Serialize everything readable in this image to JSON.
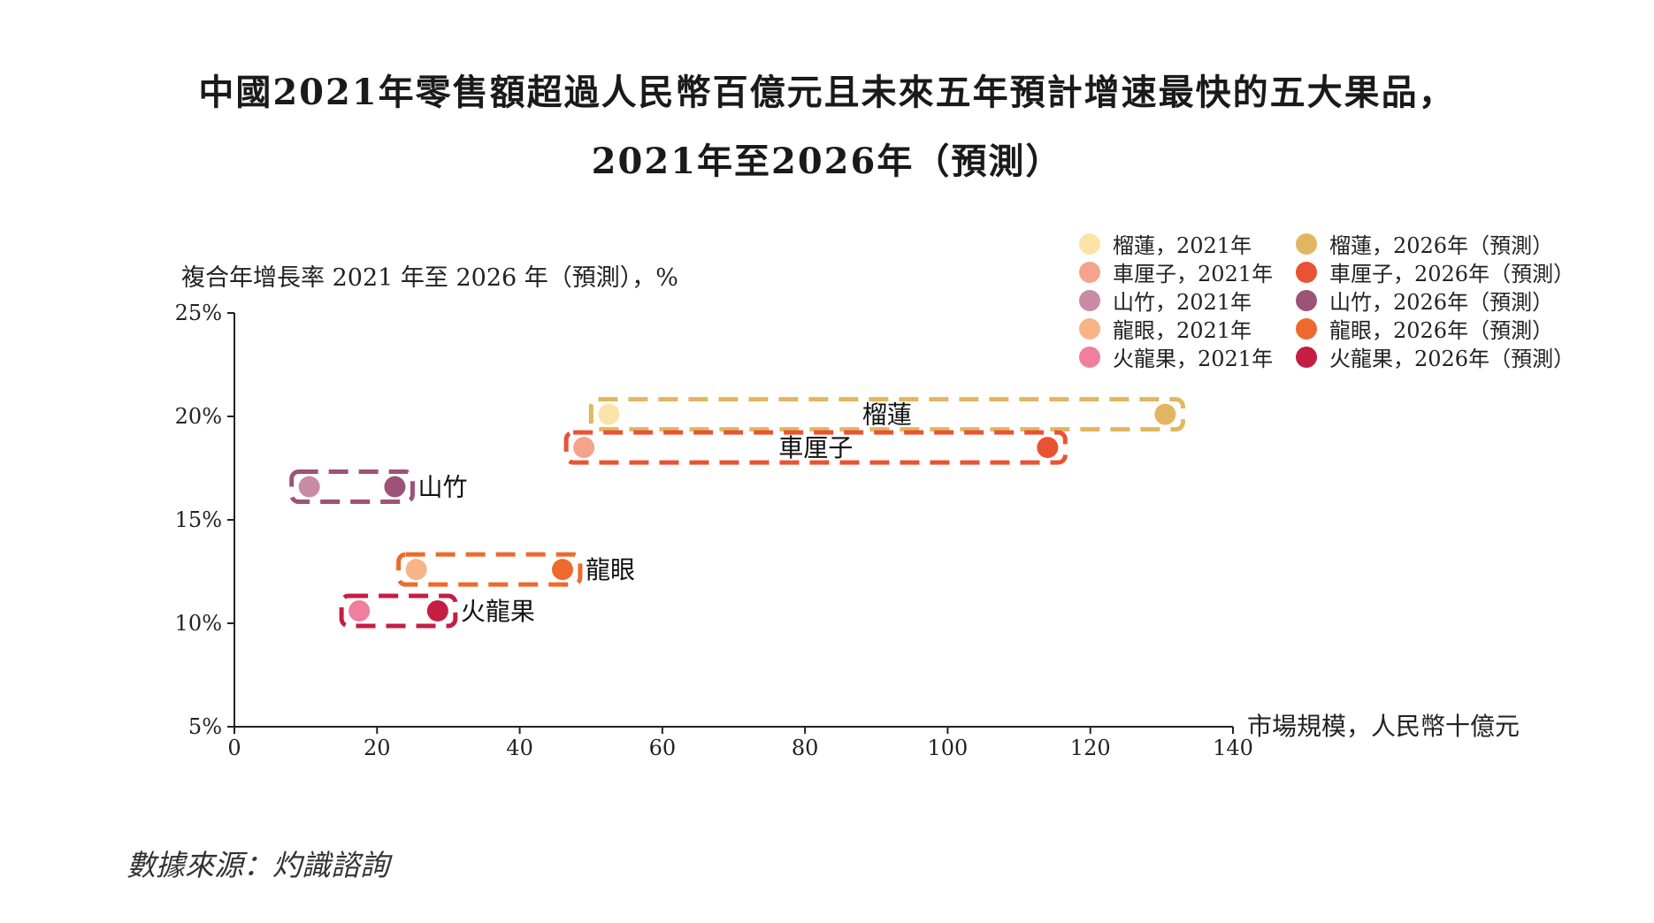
{
  "title_line1": "中國2021年零售額超過人民幣百億元且未來五年預計增速最快的五大果品，",
  "title_line2": "2021年至2026年（預測）",
  "source": "數據來源：灼識諮詢",
  "chart_data": {
    "type": "scatter",
    "ylabel": "複合年增長率 2021 年至 2026 年（預測），%",
    "xlabel": "市場規模，人民幣十億元",
    "xlim": [
      0,
      140
    ],
    "ylim": [
      5,
      25
    ],
    "x_ticks": [
      "0",
      "20",
      "40",
      "60",
      "80",
      "100",
      "120",
      "140"
    ],
    "y_ticks": [
      "5%",
      "10%",
      "15%",
      "20%",
      "25%"
    ],
    "legend_position": "top-right",
    "fruits": [
      {
        "name": "榴蓮",
        "x2021": 52.5,
        "x2026": 130.5,
        "cagr": 20.1,
        "color2021": "#fce4a8",
        "color2026": "#e2b660",
        "box_color": "#e2b660",
        "label_pos": "center"
      },
      {
        "name": "車厘子",
        "x2021": 49,
        "x2026": 114,
        "cagr": 18.5,
        "color2021": "#f4a38d",
        "color2026": "#ea5234",
        "box_color": "#ea5234",
        "label_pos": "center"
      },
      {
        "name": "山竹",
        "x2021": 10.5,
        "x2026": 22.5,
        "cagr": 16.6,
        "color2021": "#c98aa4",
        "color2026": "#9d5278",
        "box_color": "#9d5278",
        "label_pos": "right"
      },
      {
        "name": "龍眼",
        "x2021": 25.5,
        "x2026": 46,
        "cagr": 12.6,
        "color2021": "#f6b487",
        "color2026": "#ee6a2c",
        "box_color": "#ee6a2c",
        "label_pos": "right"
      },
      {
        "name": "火龍果",
        "x2021": 17.5,
        "x2026": 28.5,
        "cagr": 10.6,
        "color2021": "#f07e9c",
        "color2026": "#c51e43",
        "box_color": "#c51e43",
        "label_pos": "right"
      }
    ],
    "legend": [
      {
        "label": "榴蓮，2021年",
        "color": "#fce4a8"
      },
      {
        "label": "車厘子，2021年",
        "color": "#f4a38d"
      },
      {
        "label": "山竹，2021年",
        "color": "#c98aa4"
      },
      {
        "label": "龍眼，2021年",
        "color": "#f6b487"
      },
      {
        "label": "火龍果，2021年",
        "color": "#f07e9c"
      },
      {
        "label": "榴蓮，2026年（預測）",
        "color": "#e2b660"
      },
      {
        "label": "車厘子，2026年（預測）",
        "color": "#ea5234"
      },
      {
        "label": "山竹，2026年（預測）",
        "color": "#9d5278"
      },
      {
        "label": "龍眼，2026年（預測）",
        "color": "#ee6a2c"
      },
      {
        "label": "火龍果，2026年（預測）",
        "color": "#c51e43"
      }
    ]
  }
}
